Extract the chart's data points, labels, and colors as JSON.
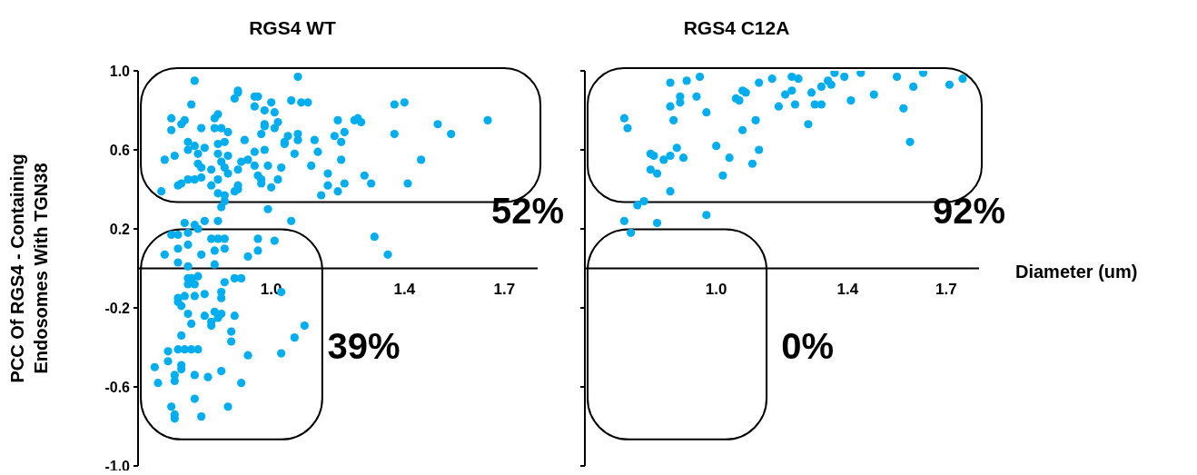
{
  "chart_data": [
    {
      "type": "scatter",
      "title": "RGS4 WT",
      "ylabel": "PCC Of RGS4 - Containing Endosomes With TGN38",
      "marker": "circle",
      "annotations": [
        "52%",
        "39%"
      ],
      "xlim": [
        0.6,
        1.8
      ],
      "xticks": [
        {
          "value": 1,
          "label": "1.0"
        },
        {
          "value": 1.4,
          "label": "1.4"
        },
        {
          "value": 1.7,
          "label": "1.7"
        }
      ],
      "ylim": [
        -1,
        1
      ],
      "yticks": [
        {
          "value": -1,
          "label": "-1.0"
        },
        -0.6,
        -0.2,
        0.2,
        0.6,
        {
          "value": 1,
          "label": "1.0"
        }
      ],
      "series": [
        {
          "color": "#00aeef",
          "x": [
            0.77,
            1.08,
            0.76,
            0.9,
            0.89,
            0.9,
            0.95,
            0.96,
            0.95,
            1.0,
            0.98,
            1.01,
            1.06,
            1.09,
            1.11,
            0.7,
            0.73,
            0.74,
            0.7,
            0.79,
            0.83,
            0.84,
            0.83,
            0.85,
            0.87,
            0.98,
            0.98,
            1.01,
            1.02,
            0.97,
            1.08,
            1.08,
            1.05,
            1.04,
            1.04,
            1.07,
            1.13,
            1.14,
            1.19,
            1.21,
            1.22,
            1.2,
            1.25,
            1.26,
            1.27,
            1.37,
            1.4,
            1.5,
            1.54,
            1.65,
            1.37,
            1.45,
            1.21,
            1.12,
            1.17,
            1.28,
            1.3,
            1.41,
            1.17,
            1.2,
            1.22,
            1.15,
            0.75,
            0.77,
            0.75,
            0.78,
            0.8,
            0.84,
            0.86,
            0.92,
            0.95,
            0.98,
            0.68,
            0.71,
            0.78,
            0.79,
            0.82,
            0.84,
            0.87,
            0.85,
            0.86,
            0.87,
            0.9,
            0.91,
            0.93,
            0.95,
            0.99,
            1.03,
            0.96,
            0.97,
            0.97,
            1.02,
            1.0,
            0.9,
            0.9,
            0.89,
            0.84,
            0.82,
            0.84,
            0.86,
            0.86,
            0.85,
            0.79,
            0.77,
            0.75,
            0.73,
            0.72,
            0.67,
            0.99,
            1.06,
            1.31,
            1.35,
            0.74,
            0.77,
            0.8,
            0.84,
            0.7,
            0.72,
            0.75,
            0.78,
            0.82,
            0.84,
            0.86,
            0.96,
            1.01,
            0.72,
            0.75,
            0.79,
            0.83,
            0.86,
            0.93,
            0.96,
            0.68,
            0.72,
            0.75,
            0.83,
            0.75,
            0.76,
            0.78,
            0.75,
            0.77,
            0.86,
            0.89,
            0.91,
            1.03,
            0.8,
            0.85,
            0.85,
            0.72,
            0.74,
            0.77,
            0.72,
            0.73,
            0.75,
            0.8,
            0.83,
            0.85,
            0.84,
            0.82,
            0.82,
            0.89,
            0.76,
            0.88,
            0.88,
            0.73,
            0.69,
            0.72,
            0.74,
            0.76,
            0.78,
            0.93,
            1.03,
            1.07,
            1.1,
            0.65,
            0.69,
            0.73,
            0.73,
            0.71,
            0.71,
            0.77,
            0.81,
            0.85,
            0.91,
            0.66,
            0.77,
            0.87,
            0.79,
            0.7,
            0.71,
            0.71
          ],
          "values": [
            0.95,
            0.97,
            0.83,
            0.9,
            0.86,
            0.89,
            0.87,
            0.87,
            0.82,
            0.84,
            0.8,
            0.79,
            0.85,
            0.84,
            0.84,
            0.76,
            0.73,
            0.75,
            0.7,
            0.71,
            0.76,
            0.78,
            0.71,
            0.71,
            0.69,
            0.73,
            0.72,
            0.71,
            0.74,
            0.68,
            0.68,
            0.65,
            0.67,
            0.63,
            0.64,
            0.58,
            0.65,
            0.59,
            0.67,
            0.64,
            0.69,
            0.75,
            0.75,
            0.76,
            0.74,
            0.83,
            0.84,
            0.73,
            0.68,
            0.75,
            0.68,
            0.55,
            0.55,
            0.52,
            0.48,
            0.47,
            0.43,
            0.43,
            0.42,
            0.39,
            0.43,
            0.37,
            0.64,
            0.62,
            0.6,
            0.58,
            0.61,
            0.63,
            0.64,
            0.65,
            0.59,
            0.6,
            0.55,
            0.57,
            0.53,
            0.51,
            0.5,
            0.58,
            0.57,
            0.54,
            0.51,
            0.48,
            0.5,
            0.54,
            0.55,
            0.52,
            0.52,
            0.51,
            0.47,
            0.45,
            0.43,
            0.45,
            0.41,
            0.42,
            0.4,
            0.39,
            0.45,
            0.42,
            0.38,
            0.37,
            0.34,
            0.31,
            0.46,
            0.45,
            0.45,
            0.43,
            0.42,
            0.39,
            0.3,
            0.24,
            0.16,
            0.07,
            0.23,
            0.22,
            0.24,
            0.24,
            0.17,
            0.17,
            0.18,
            0.2,
            0.15,
            0.15,
            0.15,
            0.15,
            0.14,
            0.1,
            0.12,
            0.07,
            0.09,
            0.1,
            0.06,
            0.09,
            0.07,
            0.03,
            0.01,
            0.02,
            -0.05,
            -0.05,
            -0.04,
            -0.08,
            -0.08,
            -0.07,
            -0.05,
            -0.05,
            -0.12,
            -0.13,
            -0.12,
            -0.15,
            -0.15,
            -0.14,
            -0.14,
            -0.17,
            -0.19,
            -0.23,
            -0.24,
            -0.22,
            -0.23,
            -0.25,
            -0.27,
            -0.29,
            -0.24,
            -0.28,
            -0.32,
            -0.37,
            -0.34,
            -0.42,
            -0.41,
            -0.41,
            -0.41,
            -0.41,
            -0.44,
            -0.43,
            -0.35,
            -0.29,
            -0.5,
            -0.47,
            -0.49,
            -0.51,
            -0.54,
            -0.57,
            -0.54,
            -0.55,
            -0.52,
            -0.58,
            -0.58,
            -0.66,
            -0.7,
            -0.75,
            -0.7,
            -0.74,
            -0.76
          ]
        }
      ]
    },
    {
      "type": "scatter",
      "title": "RGS4 C12A",
      "xlabel": "Diameter (um)",
      "marker": "circle",
      "annotations": [
        "92%",
        "0%"
      ],
      "tick_labels": "x",
      "xlim": [
        0.6,
        1.8
      ],
      "xticks": [
        {
          "value": 1,
          "label": "1.0"
        },
        {
          "value": 1.4,
          "label": "1.4"
        },
        {
          "value": 1.7,
          "label": "1.7"
        }
      ],
      "ylim": [
        -1,
        1
      ],
      "yticks": [
        -1,
        -0.6,
        -0.2,
        0.2,
        0.6,
        1
      ],
      "series": [
        {
          "color": "#00aeef",
          "x": [
            0.72,
            0.73,
            0.86,
            0.91,
            0.95,
            0.86,
            0.87,
            0.89,
            0.89,
            0.94,
            0.97,
            1.06,
            1.07,
            1.08,
            1.09,
            1.13,
            1.17,
            1.23,
            1.25,
            1.23,
            1.21,
            1.19,
            1.24,
            1.29,
            1.32,
            1.34,
            1.35,
            1.36,
            1.39,
            1.44,
            1.41,
            1.48,
            1.3,
            1.32,
            1.28,
            1.12,
            1.08,
            1.55,
            1.6,
            1.63,
            1.71,
            1.75,
            1.57,
            1.59,
            1.0,
            1.04,
            1.13,
            1.11,
            1.02,
            0.88,
            0.86,
            0.81,
            0.8,
            0.84,
            0.9,
            0.8,
            0.82,
            0.86,
            0.76,
            0.78,
            0.97,
            0.72,
            0.82,
            0.74
          ],
          "values": [
            0.76,
            0.71,
            0.94,
            0.95,
            0.97,
            0.82,
            0.75,
            0.87,
            0.84,
            0.87,
            0.79,
            0.86,
            0.85,
            0.9,
            0.89,
            0.94,
            0.96,
            0.97,
            0.96,
            0.9,
            0.88,
            0.82,
            0.83,
            0.89,
            0.92,
            0.95,
            0.93,
            0.99,
            0.97,
            0.99,
            0.85,
            0.88,
            0.83,
            0.83,
            0.73,
            0.75,
            0.7,
            0.97,
            0.92,
            0.99,
            0.93,
            0.96,
            0.81,
            0.64,
            0.62,
            0.56,
            0.6,
            0.53,
            0.47,
            0.61,
            0.57,
            0.57,
            0.58,
            0.55,
            0.56,
            0.5,
            0.48,
            0.39,
            0.32,
            0.34,
            0.27,
            0.24,
            0.23,
            0.18
          ]
        }
      ]
    }
  ]
}
